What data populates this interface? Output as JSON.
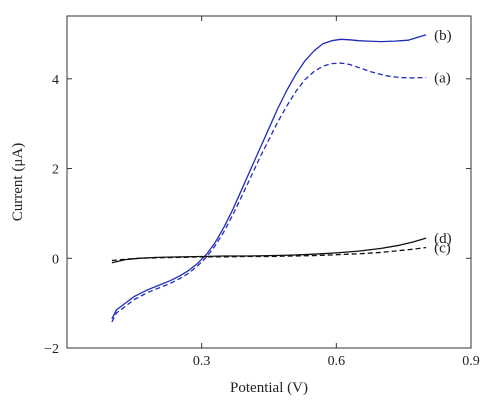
{
  "chart_data": {
    "type": "line",
    "xlabel": "Potential (V)",
    "ylabel": "Current (μA)",
    "xlim": [
      0.0,
      0.9
    ],
    "ylim": [
      -2.0,
      5.4
    ],
    "xticks": [
      0.3,
      0.6,
      0.9
    ],
    "yticks": [
      -2,
      0,
      2,
      4
    ],
    "xtick_labels": [
      "0.3",
      "0.6",
      "0.9"
    ],
    "ytick_labels": [
      "−2",
      "0",
      "2",
      "4"
    ],
    "grid": false,
    "series": [
      {
        "label": "(b)",
        "color": "#1f2bb8",
        "dash": "solid",
        "x": [
          0.1,
          0.11,
          0.13,
          0.15,
          0.18,
          0.2,
          0.23,
          0.25,
          0.27,
          0.29,
          0.31,
          0.33,
          0.35,
          0.37,
          0.39,
          0.41,
          0.43,
          0.45,
          0.47,
          0.49,
          0.51,
          0.53,
          0.55,
          0.57,
          0.59,
          0.61,
          0.63,
          0.65,
          0.67,
          0.7,
          0.73,
          0.76,
          0.78,
          0.8
        ],
        "y": [
          -1.35,
          -1.15,
          -1.0,
          -0.85,
          -0.7,
          -0.62,
          -0.5,
          -0.4,
          -0.28,
          -0.12,
          0.08,
          0.35,
          0.7,
          1.1,
          1.55,
          2.0,
          2.45,
          2.9,
          3.35,
          3.75,
          4.1,
          4.4,
          4.62,
          4.78,
          4.85,
          4.88,
          4.87,
          4.85,
          4.84,
          4.83,
          4.84,
          4.86,
          4.92,
          4.98
        ]
      },
      {
        "label": "(a)",
        "color": "#1f2bb8",
        "dash": "dashed",
        "x": [
          0.1,
          0.11,
          0.13,
          0.15,
          0.18,
          0.2,
          0.23,
          0.25,
          0.27,
          0.29,
          0.31,
          0.33,
          0.35,
          0.37,
          0.39,
          0.41,
          0.43,
          0.45,
          0.47,
          0.49,
          0.51,
          0.53,
          0.55,
          0.57,
          0.59,
          0.61,
          0.63,
          0.65,
          0.68,
          0.71,
          0.74,
          0.77,
          0.8
        ],
        "y": [
          -1.42,
          -1.22,
          -1.07,
          -0.92,
          -0.76,
          -0.68,
          -0.56,
          -0.46,
          -0.34,
          -0.18,
          0.02,
          0.28,
          0.6,
          0.98,
          1.4,
          1.82,
          2.25,
          2.65,
          3.05,
          3.4,
          3.72,
          3.98,
          4.16,
          4.28,
          4.34,
          4.35,
          4.32,
          4.25,
          4.15,
          4.07,
          4.03,
          4.02,
          4.03
        ]
      },
      {
        "label": "(d)",
        "color": "#111111",
        "dash": "solid",
        "x": [
          0.1,
          0.13,
          0.16,
          0.2,
          0.25,
          0.3,
          0.35,
          0.4,
          0.45,
          0.5,
          0.55,
          0.6,
          0.65,
          0.7,
          0.74,
          0.77,
          0.8
        ],
        "y": [
          -0.1,
          -0.03,
          0.0,
          0.02,
          0.03,
          0.04,
          0.05,
          0.05,
          0.06,
          0.07,
          0.09,
          0.12,
          0.16,
          0.22,
          0.29,
          0.36,
          0.45
        ]
      },
      {
        "label": "(c)",
        "color": "#111111",
        "dash": "dashed",
        "x": [
          0.1,
          0.13,
          0.16,
          0.2,
          0.25,
          0.3,
          0.35,
          0.4,
          0.45,
          0.5,
          0.55,
          0.6,
          0.65,
          0.7,
          0.74,
          0.77,
          0.8
        ],
        "y": [
          -0.05,
          -0.02,
          0.0,
          0.01,
          0.02,
          0.03,
          0.03,
          0.04,
          0.04,
          0.05,
          0.06,
          0.08,
          0.1,
          0.13,
          0.17,
          0.2,
          0.24
        ]
      }
    ]
  }
}
